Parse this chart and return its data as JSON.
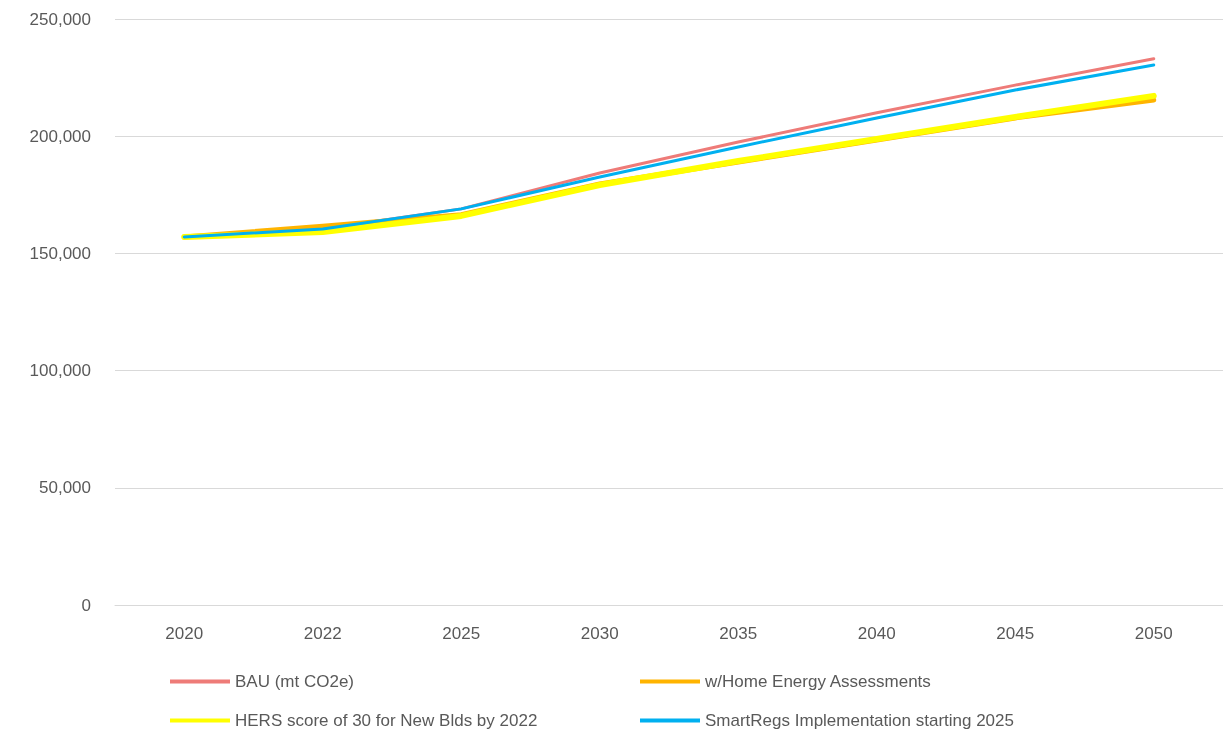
{
  "chart_data": {
    "type": "line",
    "categories": [
      "2020",
      "2022",
      "2025",
      "2030",
      "2035",
      "2040",
      "2045",
      "2050"
    ],
    "series": [
      {
        "name": "BAU (mt CO2e)",
        "color": "#ee7b78",
        "values": [
          157000,
          160500,
          169000,
          184300,
          197500,
          210000,
          221800,
          233000
        ]
      },
      {
        "name": "w/Home Energy Assessments",
        "color": "#ffb400",
        "values": [
          157000,
          161600,
          166500,
          179600,
          189000,
          198400,
          207800,
          215400
        ]
      },
      {
        "name": "HERS score of 30 for New Blds by 2022",
        "color": "#ffff00",
        "values": [
          157000,
          159100,
          166000,
          179200,
          189400,
          198800,
          208200,
          217200
        ]
      },
      {
        "name": "SmartRegs Implementation starting 2025",
        "color": "#00b0f0",
        "values": [
          157000,
          160400,
          169000,
          182600,
          195400,
          207800,
          219700,
          230400
        ]
      }
    ],
    "ylim": [
      0,
      250000
    ],
    "yticks": [
      0,
      {
        "value": 50000,
        "label": "50,000"
      },
      {
        "value": 100000,
        "label": "100,000"
      },
      {
        "value": 150000,
        "label": "150,000"
      },
      {
        "value": 200000,
        "label": "200,000"
      },
      {
        "value": 250000,
        "label": "250,000"
      }
    ],
    "grid": "y",
    "legend": "bottom",
    "marker": "none",
    "line_style": "solid"
  }
}
